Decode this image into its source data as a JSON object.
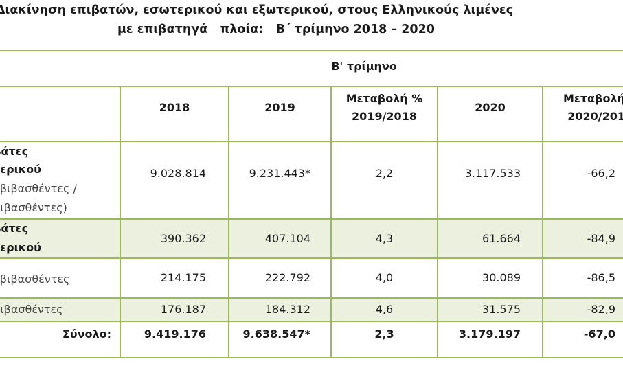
{
  "title": {
    "line1": "Διακίνηση επιβατών, εσωτερικού και εξωτερικού, στους Ελληνικούς λιμένες",
    "line2": "με επιβατηγά   πλοία:   Β΄ τρίμηνο 2018 – 2020"
  },
  "table": {
    "group_header": "Β' τρίμηνο",
    "columns": [
      "2018",
      "2019",
      "Μεταβολή %\n2019/2018",
      "2020",
      "Μεταβολή\n2020/201"
    ],
    "rows": [
      {
        "label": [
          "βάτες",
          "τερικού",
          "οβιβασθέντες /",
          "βιβασθέντες)"
        ],
        "values": [
          "9.028.814",
          "9.231.443*",
          "2,2",
          "3.117.533",
          "-66,2"
        ]
      },
      {
        "label": [
          "βάτες",
          "τερικού"
        ],
        "values": [
          "390.362",
          "407.104",
          "4,3",
          "61.664",
          "-84,9"
        ]
      },
      {
        "label": [
          "οβιβασθέντες"
        ],
        "values": [
          "214.175",
          "222.792",
          "4,0",
          "30.089",
          "-86,5"
        ]
      },
      {
        "label": [
          "βιβασθέντες"
        ],
        "values": [
          "176.187",
          "184.312",
          "4,6",
          "31.575",
          "-82,9"
        ]
      }
    ],
    "total": {
      "label": "Σύνολο:",
      "values": [
        "9.419.176",
        "9.638.547*",
        "2,3",
        "3.179.197",
        "-67,0"
      ]
    }
  }
}
